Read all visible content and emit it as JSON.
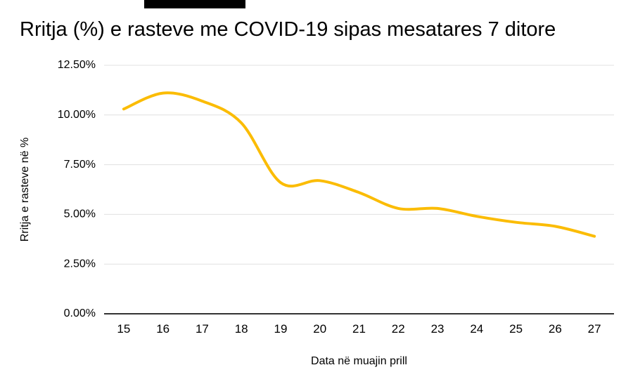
{
  "window": {
    "background": "#ffffff"
  },
  "artifacts": {
    "redaction_bar_color": "#000000"
  },
  "chart_data": {
    "type": "line",
    "title": "Rritja (%) e rasteve me COVID-19 sipas mesatares 7 ditore",
    "xlabel": "Data në muajin prill",
    "ylabel": "Rritja e rasteve në %",
    "categories": [
      "15",
      "16",
      "17",
      "18",
      "19",
      "20",
      "21",
      "22",
      "23",
      "24",
      "25",
      "26",
      "27"
    ],
    "values": [
      10.3,
      11.1,
      10.7,
      9.6,
      6.6,
      6.7,
      6.1,
      5.3,
      5.3,
      4.9,
      4.6,
      4.4,
      3.9
    ],
    "value_unit": "%",
    "ylim": [
      0,
      12.5
    ],
    "yticks": [
      {
        "value": 0,
        "label": "0.00%"
      },
      {
        "value": 2.5,
        "label": "2.50%"
      },
      {
        "value": 5,
        "label": "5.00%"
      },
      {
        "value": 7.5,
        "label": "7.50%"
      },
      {
        "value": 10,
        "label": "10.00%"
      },
      {
        "value": 12.5,
        "label": "12.50%"
      }
    ],
    "grid": true,
    "legend": "none",
    "smooth": true,
    "colors": {
      "line": "#FBBC04",
      "grid": "#E0E0E0",
      "axis": "#333333",
      "text": "#000000"
    }
  }
}
